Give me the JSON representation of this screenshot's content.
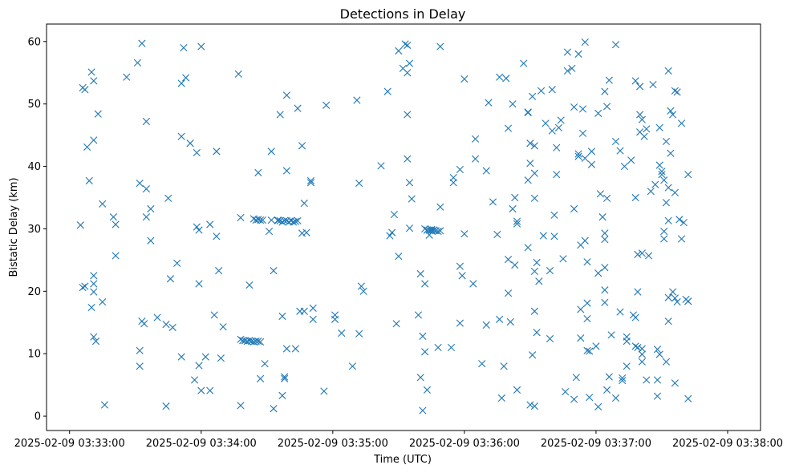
{
  "chart_data": {
    "type": "scatter",
    "title": "Detections in Delay",
    "xlabel": "Time (UTC)",
    "ylabel": "Bistatic Delay (km)",
    "marker": "x",
    "color": "#1f77b4",
    "xlim_seconds": [
      -10.5,
      315
    ],
    "ylim": [
      -2.3,
      62.8
    ],
    "x_ticks": [
      {
        "t": 0,
        "label": "2025-02-09 03:33:00"
      },
      {
        "t": 60,
        "label": "2025-02-09 03:34:00"
      },
      {
        "t": 120,
        "label": "2025-02-09 03:35:00"
      },
      {
        "t": 180,
        "label": "2025-02-09 03:36:00"
      },
      {
        "t": 240,
        "label": "2025-02-09 03:37:00"
      },
      {
        "t": 300,
        "label": "2025-02-09 03:38:00"
      }
    ],
    "y_ticks": [
      0,
      10,
      20,
      30,
      40,
      50,
      60
    ],
    "points_t_seconds_km": [
      [
        5,
        30.6
      ],
      [
        6,
        20.6
      ],
      [
        6,
        52.6
      ],
      [
        7,
        52.3
      ],
      [
        7,
        20.8
      ],
      [
        8,
        43.1
      ],
      [
        9,
        37.7
      ],
      [
        10,
        55.1
      ],
      [
        10,
        17.4
      ],
      [
        11,
        53.7
      ],
      [
        11,
        44.2
      ],
      [
        11,
        22.5
      ],
      [
        11,
        21.2
      ],
      [
        11,
        19.9
      ],
      [
        11,
        12.7
      ],
      [
        12,
        12.0
      ],
      [
        13,
        48.4
      ],
      [
        15,
        34.0
      ],
      [
        15,
        18.3
      ],
      [
        16,
        1.8
      ],
      [
        20,
        31.9
      ],
      [
        21,
        30.7
      ],
      [
        21,
        25.7
      ],
      [
        26,
        54.3
      ],
      [
        31,
        56.6
      ],
      [
        32,
        37.3
      ],
      [
        32,
        10.5
      ],
      [
        32,
        8.0
      ],
      [
        33,
        59.7
      ],
      [
        33,
        15.2
      ],
      [
        34,
        14.8
      ],
      [
        35,
        47.2
      ],
      [
        35,
        36.4
      ],
      [
        35,
        31.9
      ],
      [
        37,
        33.2
      ],
      [
        37,
        28.1
      ],
      [
        40,
        15.8
      ],
      [
        44,
        14.7
      ],
      [
        44,
        1.6
      ],
      [
        45,
        34.9
      ],
      [
        46,
        22.0
      ],
      [
        47,
        14.2
      ],
      [
        49,
        24.5
      ],
      [
        51,
        53.3
      ],
      [
        51,
        44.8
      ],
      [
        51,
        9.5
      ],
      [
        52,
        59.0
      ],
      [
        53,
        54.2
      ],
      [
        55,
        43.7
      ],
      [
        57,
        5.8
      ],
      [
        58,
        30.3
      ],
      [
        58,
        42.2
      ],
      [
        59,
        29.8
      ],
      [
        59,
        21.2
      ],
      [
        59,
        8.1
      ],
      [
        60,
        59.2
      ],
      [
        60,
        4.1
      ],
      [
        62,
        9.5
      ],
      [
        64,
        30.7
      ],
      [
        64,
        4.1
      ],
      [
        66,
        16.2
      ],
      [
        67,
        42.4
      ],
      [
        67,
        28.8
      ],
      [
        68,
        23.3
      ],
      [
        69,
        9.3
      ],
      [
        70,
        14.3
      ],
      [
        77,
        54.8
      ],
      [
        78,
        1.7
      ],
      [
        78,
        31.8
      ],
      [
        78,
        12.3
      ],
      [
        79,
        12.1
      ],
      [
        80,
        12.1
      ],
      [
        81,
        12.0
      ],
      [
        82,
        12.1
      ],
      [
        83,
        12.0
      ],
      [
        84,
        11.9
      ],
      [
        85,
        12.0
      ],
      [
        86,
        12.0
      ],
      [
        87,
        11.9
      ],
      [
        82,
        21.0
      ],
      [
        84,
        31.6
      ],
      [
        85,
        31.4
      ],
      [
        86,
        31.5
      ],
      [
        87,
        31.4
      ],
      [
        86,
        39.0
      ],
      [
        87,
        6.0
      ],
      [
        88,
        31.4
      ],
      [
        89,
        8.4
      ],
      [
        91,
        29.6
      ],
      [
        92,
        31.4
      ],
      [
        92,
        42.4
      ],
      [
        93,
        23.3
      ],
      [
        93,
        1.2
      ],
      [
        95,
        31.3
      ],
      [
        95,
        31.4
      ],
      [
        96,
        31.3
      ],
      [
        96,
        48.3
      ],
      [
        97,
        31.1
      ],
      [
        97,
        3.3
      ],
      [
        97,
        16.0
      ],
      [
        98,
        31.3
      ],
      [
        98,
        6.0
      ],
      [
        98,
        6.3
      ],
      [
        99,
        31.3
      ],
      [
        99,
        39.3
      ],
      [
        99,
        10.8
      ],
      [
        99,
        51.4
      ],
      [
        100,
        31.1
      ],
      [
        101,
        31.3
      ],
      [
        102,
        31.1
      ],
      [
        103,
        31.2
      ],
      [
        103,
        10.8
      ],
      [
        104,
        31.3
      ],
      [
        104,
        49.3
      ],
      [
        105,
        16.8
      ],
      [
        106,
        43.3
      ],
      [
        106,
        29.3
      ],
      [
        107,
        34.1
      ],
      [
        107,
        16.8
      ],
      [
        108,
        29.4
      ],
      [
        110,
        37.7
      ],
      [
        110,
        37.4
      ],
      [
        111,
        15.5
      ],
      [
        111,
        17.3
      ],
      [
        116,
        4.0
      ],
      [
        117,
        49.8
      ],
      [
        121,
        16.2
      ],
      [
        121,
        15.5
      ],
      [
        124,
        13.3
      ],
      [
        129,
        8.0
      ],
      [
        131,
        50.6
      ],
      [
        132,
        37.3
      ],
      [
        132,
        13.2
      ],
      [
        133,
        20.8
      ],
      [
        134,
        20.0
      ],
      [
        142,
        40.1
      ],
      [
        145,
        52.0
      ],
      [
        146,
        28.9
      ],
      [
        147,
        29.4
      ],
      [
        148,
        32.3
      ],
      [
        149,
        14.8
      ],
      [
        150,
        25.6
      ],
      [
        150,
        58.5
      ],
      [
        152,
        55.7
      ],
      [
        153,
        59.6
      ],
      [
        154,
        59.4
      ],
      [
        154,
        55.0
      ],
      [
        154,
        48.3
      ],
      [
        154,
        41.2
      ],
      [
        155,
        56.5
      ],
      [
        155,
        37.4
      ],
      [
        155,
        30.1
      ],
      [
        156,
        34.8
      ],
      [
        159,
        16.2
      ],
      [
        160,
        22.8
      ],
      [
        160,
        6.2
      ],
      [
        161,
        12.8
      ],
      [
        161,
        0.9
      ],
      [
        162,
        10.3
      ],
      [
        162,
        21.2
      ],
      [
        162,
        30.0
      ],
      [
        163,
        29.8
      ],
      [
        163,
        4.2
      ],
      [
        163,
        29.8
      ],
      [
        164,
        29.8
      ],
      [
        164,
        29.0
      ],
      [
        165,
        29.7
      ],
      [
        165,
        29.9
      ],
      [
        166,
        29.8
      ],
      [
        167,
        29.7
      ],
      [
        168,
        29.6
      ],
      [
        169,
        29.7
      ],
      [
        169,
        33.5
      ],
      [
        169,
        59.2
      ],
      [
        168,
        11.0
      ],
      [
        174,
        11.0
      ],
      [
        175,
        38.2
      ],
      [
        175,
        37.4
      ],
      [
        178,
        39.5
      ],
      [
        178,
        24.0
      ],
      [
        178,
        14.9
      ],
      [
        179,
        22.5
      ],
      [
        180,
        54.0
      ],
      [
        180,
        29.2
      ],
      [
        184,
        21.2
      ],
      [
        185,
        44.4
      ],
      [
        185,
        41.2
      ],
      [
        188,
        8.4
      ],
      [
        190,
        39.3
      ],
      [
        190,
        14.6
      ],
      [
        191,
        50.2
      ],
      [
        193,
        34.3
      ],
      [
        195,
        29.1
      ],
      [
        196,
        54.3
      ],
      [
        196,
        15.5
      ],
      [
        197,
        2.9
      ],
      [
        198,
        8.0
      ],
      [
        199,
        54.1
      ],
      [
        200,
        46.1
      ],
      [
        200,
        19.7
      ],
      [
        200,
        25.1
      ],
      [
        201,
        15.1
      ],
      [
        202,
        50.0
      ],
      [
        202,
        33.2
      ],
      [
        203,
        24.2
      ],
      [
        203,
        35.0
      ],
      [
        204,
        31.2
      ],
      [
        204,
        30.8
      ],
      [
        204,
        4.2
      ],
      [
        207,
        56.5
      ],
      [
        209,
        48.6
      ],
      [
        209,
        27.0
      ],
      [
        209,
        37.8
      ],
      [
        210,
        43.7
      ],
      [
        210,
        40.5
      ],
      [
        210,
        1.8
      ],
      [
        211,
        51.2
      ],
      [
        211,
        9.8
      ],
      [
        212,
        43.3
      ],
      [
        212,
        38.9
      ],
      [
        212,
        34.9
      ],
      [
        212,
        23.2
      ],
      [
        212,
        16.8
      ],
      [
        212,
        1.6
      ],
      [
        213,
        13.4
      ],
      [
        213,
        24.6
      ],
      [
        214,
        21.6
      ],
      [
        215,
        52.1
      ],
      [
        216,
        28.9
      ],
      [
        217,
        46.9
      ],
      [
        219,
        12.4
      ],
      [
        219,
        23.3
      ],
      [
        220,
        52.3
      ],
      [
        220,
        45.7
      ],
      [
        221,
        28.8
      ],
      [
        221,
        32.2
      ],
      [
        222,
        43.0
      ],
      [
        222,
        38.7
      ],
      [
        223,
        46.2
      ],
      [
        224,
        47.4
      ],
      [
        225,
        25.2
      ],
      [
        226,
        3.9
      ],
      [
        227,
        58.3
      ],
      [
        227,
        55.3
      ],
      [
        229,
        55.7
      ],
      [
        230,
        49.5
      ],
      [
        230,
        33.2
      ],
      [
        230,
        2.7
      ],
      [
        231,
        6.2
      ],
      [
        232,
        42.0
      ],
      [
        232,
        41.6
      ],
      [
        232,
        58.0
      ],
      [
        233,
        12.5
      ],
      [
        233,
        17.1
      ],
      [
        233,
        27.4
      ],
      [
        234,
        45.3
      ],
      [
        234,
        49.2
      ],
      [
        235,
        59.9
      ],
      [
        235,
        28.1
      ],
      [
        235,
        41.3
      ],
      [
        236,
        24.7
      ],
      [
        236,
        18.1
      ],
      [
        236,
        15.6
      ],
      [
        236,
        10.5
      ],
      [
        237,
        3.0
      ],
      [
        237,
        10.4
      ],
      [
        238,
        42.4
      ],
      [
        238,
        40.3
      ],
      [
        240,
        11.2
      ],
      [
        241,
        48.5
      ],
      [
        241,
        22.9
      ],
      [
        241,
        1.5
      ],
      [
        242,
        35.6
      ],
      [
        243,
        31.9
      ],
      [
        244,
        29.3
      ],
      [
        244,
        28.3
      ],
      [
        244,
        52.0
      ],
      [
        244,
        23.8
      ],
      [
        244,
        20.2
      ],
      [
        244,
        18.2
      ],
      [
        245,
        49.6
      ],
      [
        245,
        4.2
      ],
      [
        245,
        34.9
      ],
      [
        246,
        53.8
      ],
      [
        246,
        6.3
      ],
      [
        247,
        13.0
      ],
      [
        249,
        59.5
      ],
      [
        249,
        44.0
      ],
      [
        249,
        2.9
      ],
      [
        251,
        42.5
      ],
      [
        251,
        16.7
      ],
      [
        252,
        6.1
      ],
      [
        252,
        5.7
      ],
      [
        253,
        40.0
      ],
      [
        254,
        12.7
      ],
      [
        254,
        12.0
      ],
      [
        254,
        8.0
      ],
      [
        256,
        41.0
      ],
      [
        257,
        16.2
      ],
      [
        258,
        53.7
      ],
      [
        258,
        35.0
      ],
      [
        258,
        11.2
      ],
      [
        259,
        25.9
      ],
      [
        259,
        19.9
      ],
      [
        259,
        11.0
      ],
      [
        260,
        52.8
      ],
      [
        260,
        48.3
      ],
      [
        260,
        45.5
      ],
      [
        261,
        47.5
      ],
      [
        261,
        26.1
      ],
      [
        261,
        10.8
      ],
      [
        261,
        9.9
      ],
      [
        261,
        8.7
      ],
      [
        262,
        44.8
      ],
      [
        263,
        46.0
      ],
      [
        263,
        5.8
      ],
      [
        264,
        25.7
      ],
      [
        265,
        36.0
      ],
      [
        266,
        53.1
      ],
      [
        267,
        37.1
      ],
      [
        268,
        10.7
      ],
      [
        268,
        3.2
      ],
      [
        268,
        5.8
      ],
      [
        269,
        46.2
      ],
      [
        269,
        40.2
      ],
      [
        269,
        9.9
      ],
      [
        270,
        39.2
      ],
      [
        270,
        38.7
      ],
      [
        271,
        28.4
      ],
      [
        271,
        37.8
      ],
      [
        271,
        29.6
      ],
      [
        272,
        44.0
      ],
      [
        272,
        34.2
      ],
      [
        272,
        8.7
      ],
      [
        273,
        55.3
      ],
      [
        273,
        36.6
      ],
      [
        273,
        31.3
      ],
      [
        273,
        19.0
      ],
      [
        273,
        15.2
      ],
      [
        274,
        48.9
      ],
      [
        274,
        42.1
      ],
      [
        275,
        48.3
      ],
      [
        275,
        19.9
      ],
      [
        276,
        35.8
      ],
      [
        276,
        52.1
      ],
      [
        276,
        18.9
      ],
      [
        277,
        51.9
      ],
      [
        277,
        18.3
      ],
      [
        278,
        31.5
      ],
      [
        279,
        46.9
      ],
      [
        279,
        28.4
      ],
      [
        280,
        31.0
      ],
      [
        281,
        18.7
      ],
      [
        282,
        38.7
      ],
      [
        282,
        18.4
      ],
      [
        282,
        18.4
      ],
      [
        282,
        2.8
      ],
      [
        258,
        15.8
      ],
      [
        276,
        5.3
      ],
      [
        209,
        48.7
      ]
    ]
  }
}
